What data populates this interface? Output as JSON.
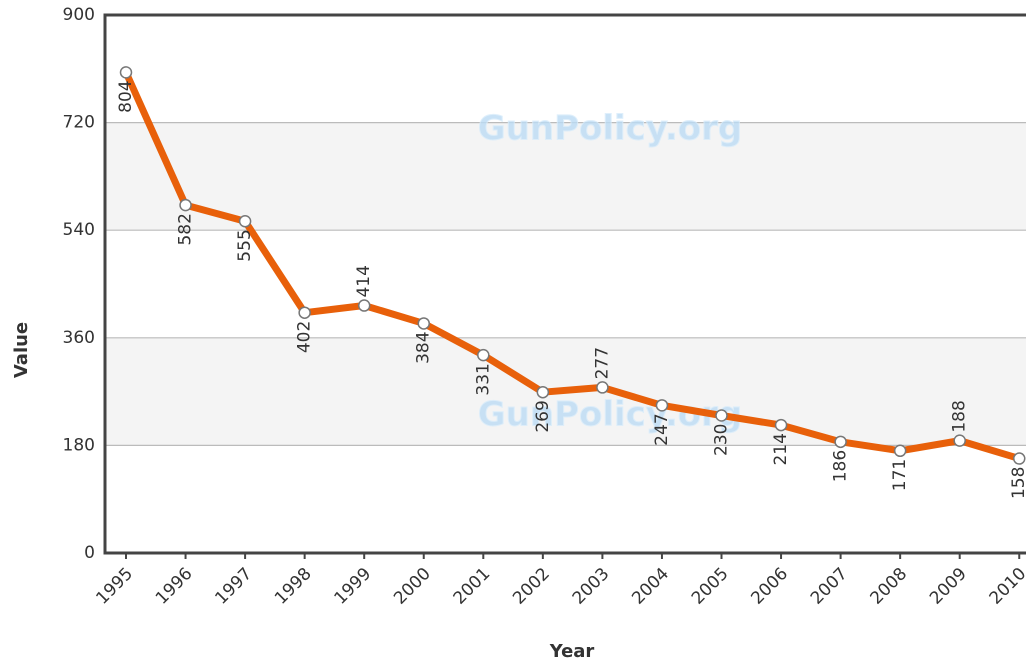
{
  "chart_data": {
    "type": "line",
    "x_label": "Year",
    "y_label": "Value",
    "watermark": "GunPolicy.org",
    "categories": [
      "1995",
      "1996",
      "1997",
      "1998",
      "1999",
      "2000",
      "2001",
      "2002",
      "2003",
      "2004",
      "2005",
      "2006",
      "2007",
      "2008",
      "2009",
      "2010"
    ],
    "series": [
      {
        "color": "#e8600a",
        "values": [
          804,
          582,
          555,
          402,
          414,
          384,
          331,
          269,
          277,
          247,
          230,
          214,
          186,
          171,
          188,
          158
        ]
      }
    ],
    "ylim": [
      0,
      900
    ],
    "yticks": [
      0,
      180,
      360,
      540,
      720,
      900
    ],
    "grid": true
  }
}
